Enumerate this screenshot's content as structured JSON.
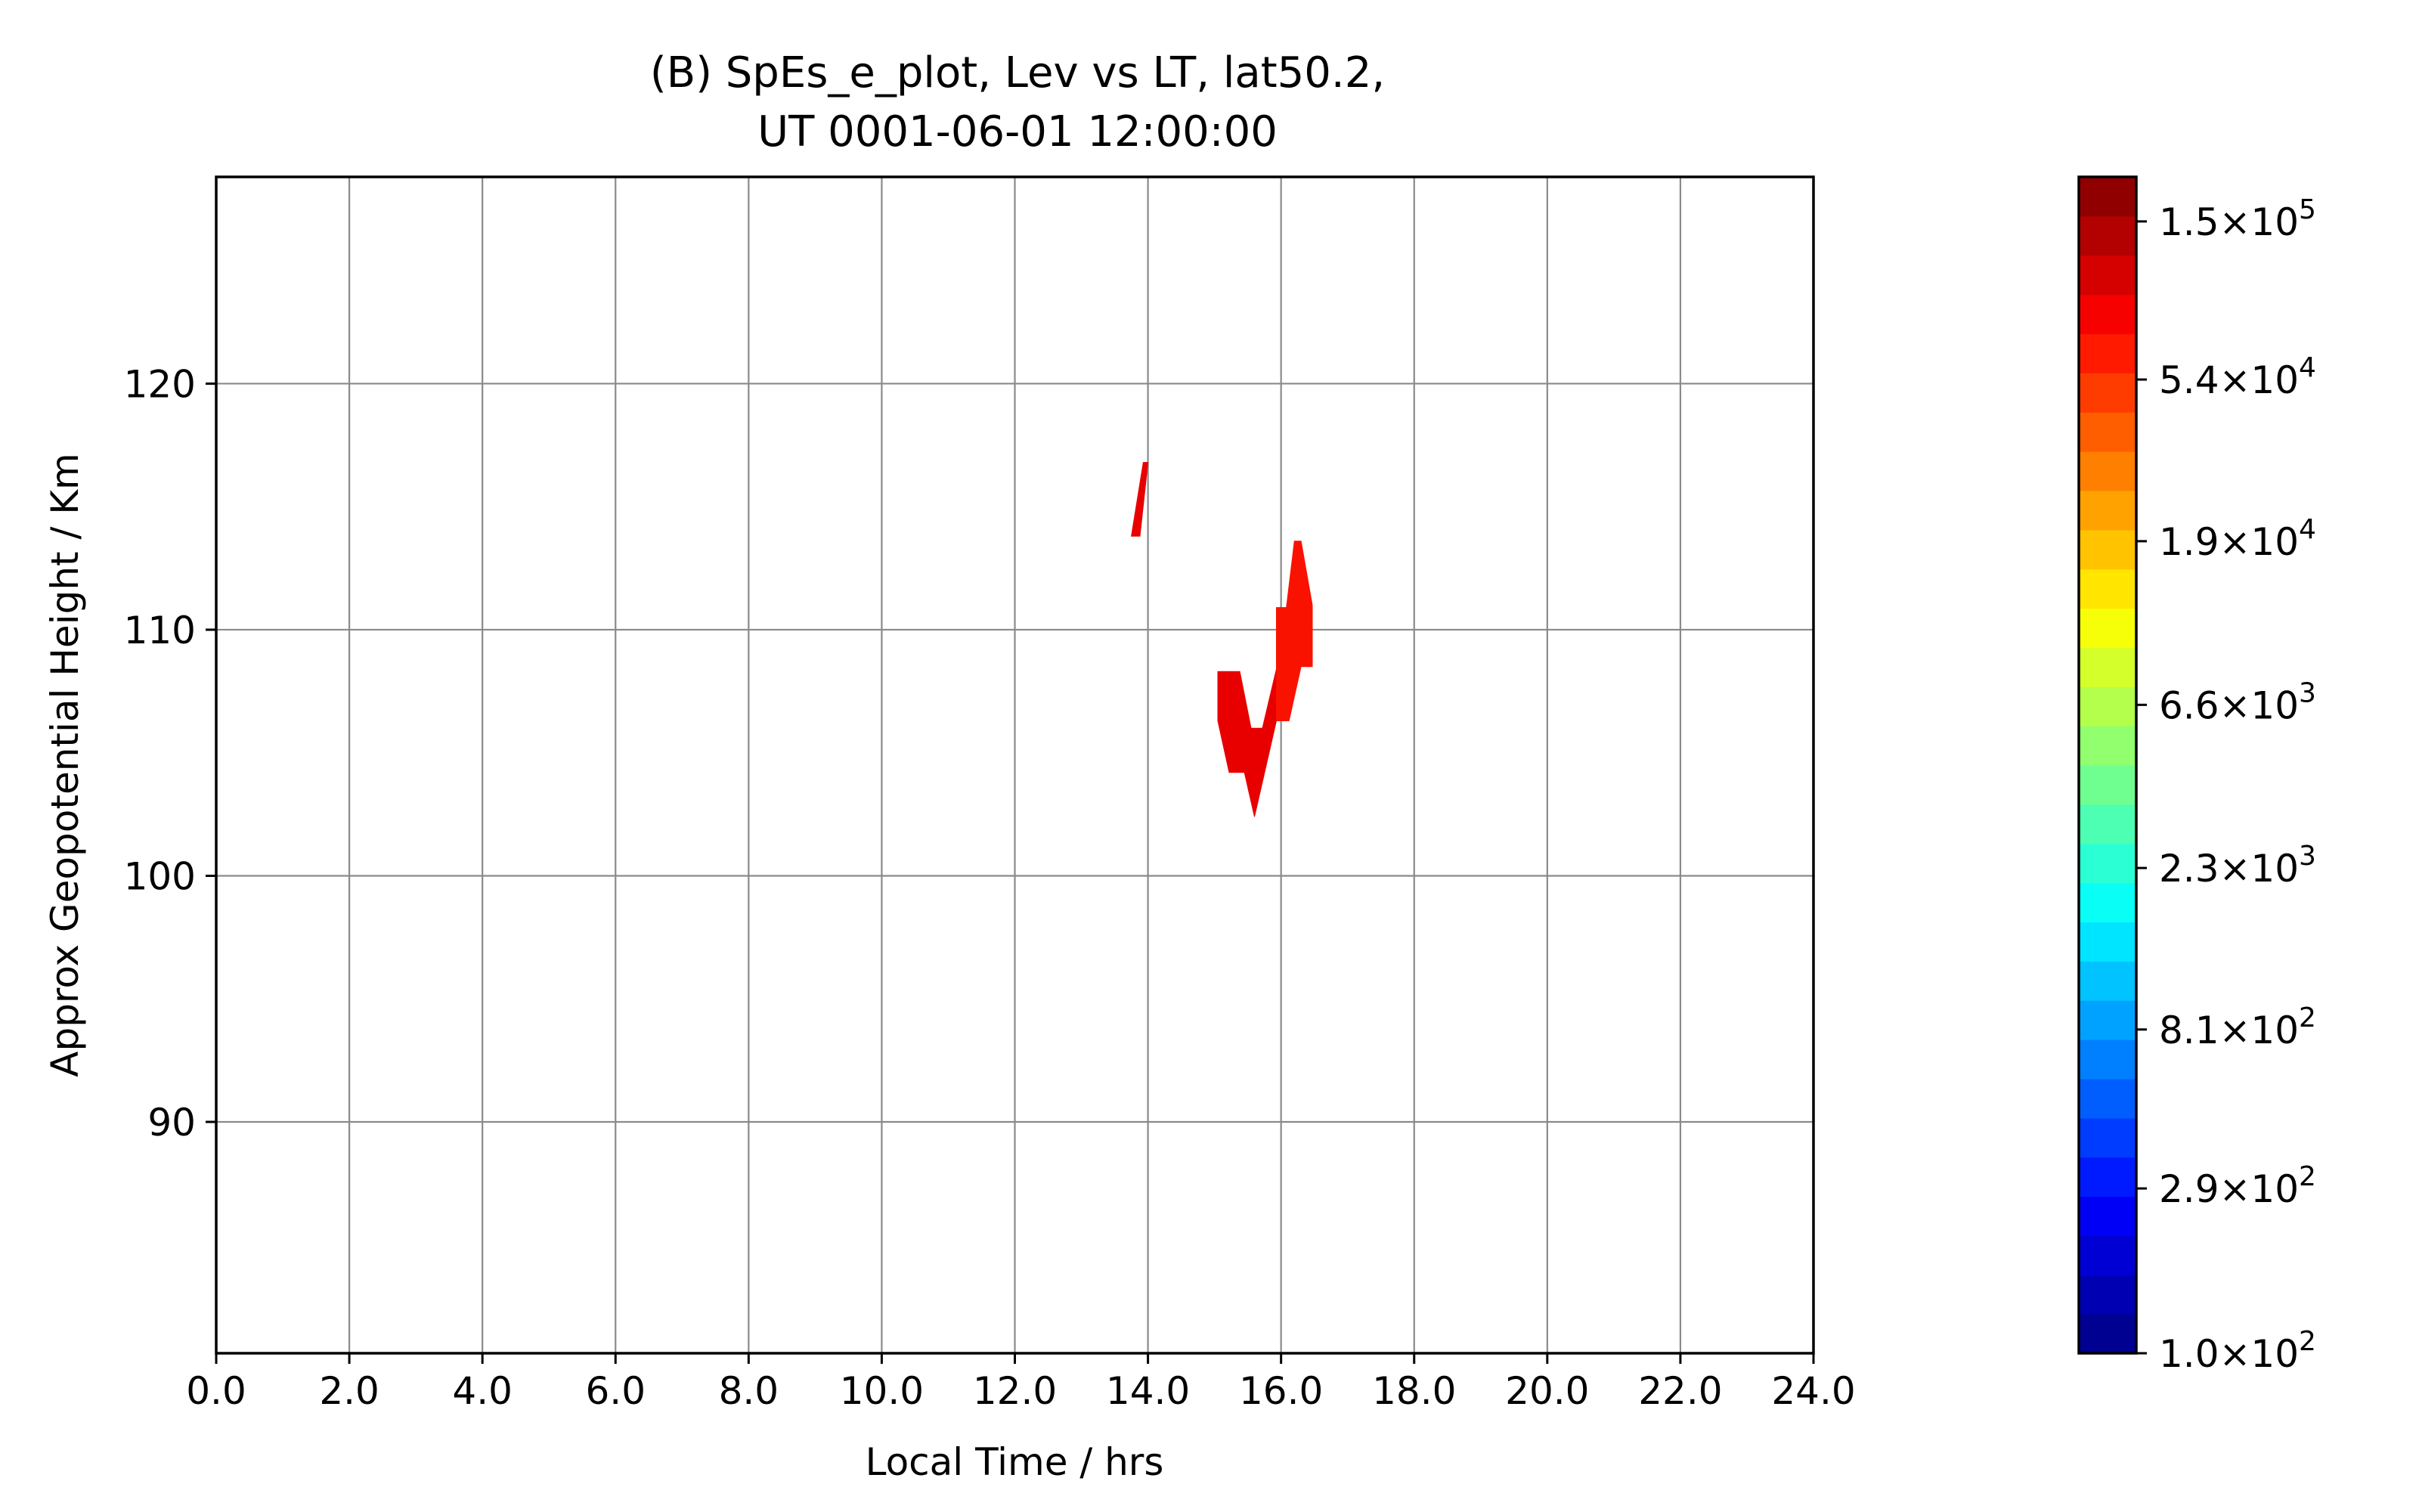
{
  "chart_data": {
    "type": "heatmap",
    "title": [
      "(B) SpEs_e_plot, Lev vs LT, lat50.2,",
      "UT 0001-06-01 12:00:00"
    ],
    "xlabel": "Local Time / hrs",
    "ylabel": "Approx Geopotential Height / Km",
    "xlim": [
      0,
      24
    ],
    "ylim": [
      80.6,
      128.4
    ],
    "x_ticks": [
      0,
      2,
      4,
      6,
      8,
      10,
      12,
      14,
      16,
      18,
      20,
      22,
      24
    ],
    "x_tick_labels": [
      "0.0",
      "2.0",
      "4.0",
      "6.0",
      "8.0",
      "10.0",
      "12.0",
      "14.0",
      "16.0",
      "18.0",
      "20.0",
      "22.0",
      "24.0"
    ],
    "y_ticks": [
      90,
      100,
      110,
      120
    ],
    "y_tick_labels": [
      "90",
      "100",
      "110",
      "120"
    ],
    "grid": true,
    "colorbar": {
      "scale": "log",
      "range": [
        100,
        200000
      ],
      "levels": 30,
      "colormap": "jet",
      "tick_values": [
        100,
        290,
        810,
        2300,
        6600,
        19000,
        54000,
        150000
      ],
      "tick_mantissas": [
        "1.0",
        "2.9",
        "8.1",
        "2.3",
        "6.6",
        "1.9",
        "5.4",
        "1.5"
      ],
      "tick_exponents": [
        "2",
        "2",
        "2",
        "3",
        "3",
        "4",
        "4",
        "5"
      ]
    },
    "regions": [
      {
        "color": "#e80000",
        "outline": [
          [
            13.75,
            113.8
          ],
          [
            13.93,
            116.8
          ],
          [
            14.0,
            116.8
          ],
          [
            13.88,
            113.8
          ]
        ]
      },
      {
        "color": "#e80000",
        "outline": [
          [
            15.05,
            108.3
          ],
          [
            15.38,
            108.3
          ],
          [
            15.55,
            106.0
          ],
          [
            15.72,
            106.0
          ],
          [
            15.93,
            108.4
          ],
          [
            15.93,
            110.9
          ],
          [
            16.08,
            110.9
          ],
          [
            16.08,
            106.3
          ],
          [
            16.12,
            106.3
          ],
          [
            15.93,
            106.3
          ],
          [
            15.6,
            102.4
          ],
          [
            15.45,
            104.2
          ],
          [
            15.22,
            104.2
          ],
          [
            15.05,
            106.3
          ]
        ]
      },
      {
        "color": "#fa1200",
        "outline": [
          [
            15.93,
            106.3
          ],
          [
            16.12,
            106.3
          ],
          [
            16.3,
            108.5
          ],
          [
            16.47,
            108.5
          ],
          [
            16.47,
            111.0
          ],
          [
            16.3,
            113.6
          ],
          [
            16.2,
            113.6
          ],
          [
            16.08,
            110.9
          ],
          [
            15.93,
            110.9
          ],
          [
            15.93,
            108.4
          ]
        ]
      }
    ]
  }
}
